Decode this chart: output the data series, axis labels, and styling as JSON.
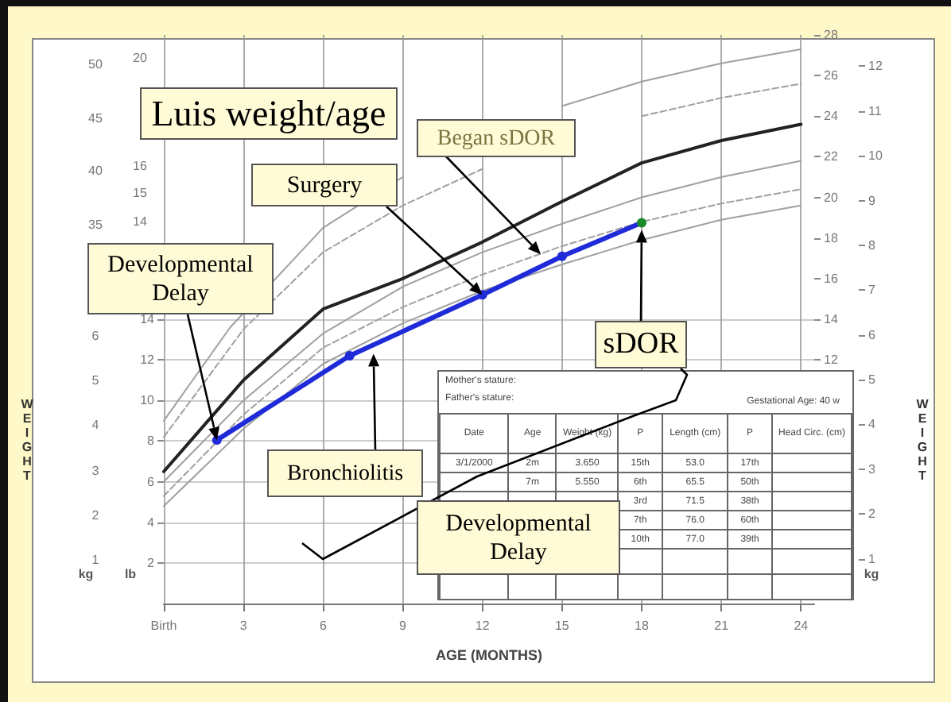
{
  "chart_data": {
    "type": "line",
    "title": "Luis weight/age",
    "xlabel": "AGE (MONTHS)",
    "x": [
      0,
      3,
      6,
      9,
      12,
      15,
      18,
      21,
      24
    ],
    "series": [
      {
        "color": "#a0a0a0",
        "marker": "none",
        "line_style": "solid",
        "x": [
          0,
          2.5,
          6,
          9,
          12,
          15,
          18,
          21,
          24
        ],
        "values": [
          9,
          13.6,
          18.5,
          21,
          null,
          24.5,
          25.7,
          26.6,
          27.3
        ]
      },
      {
        "color": "#a0a0a0",
        "marker": "none",
        "line_style": "dashed",
        "values": [
          8.2,
          13.5,
          17.3,
          19.6,
          21.4,
          null,
          24,
          24.9,
          25.6
        ]
      },
      {
        "color": "#222222",
        "marker": "none",
        "line_style": "solid",
        "values": [
          6.5,
          11,
          14.5,
          16,
          17.8,
          19.8,
          21.7,
          22.8,
          23.6
        ]
      },
      {
        "color": "#a0a0a0",
        "marker": "none",
        "line_style": "solid",
        "values": [
          6,
          10,
          13.3,
          15.6,
          17.3,
          18.7,
          20,
          21,
          21.8
        ]
      },
      {
        "color": "#a0a0a0",
        "marker": "none",
        "line_style": "dashed",
        "values": [
          5.3,
          9.3,
          12.6,
          14.6,
          16.2,
          17.6,
          18.8,
          19.7,
          20.4
        ]
      },
      {
        "color": "#a0a0a0",
        "marker": "none",
        "line_style": "solid",
        "values": [
          4.8,
          8.6,
          11.8,
          13.8,
          15.4,
          16.7,
          17.9,
          18.9,
          19.6
        ]
      },
      {
        "color": "#1f2bd8",
        "marker": "circle",
        "line_style": "solid",
        "x": [
          2,
          7,
          12,
          15,
          18
        ],
        "values": [
          8.05,
          12.2,
          15.2,
          17.1,
          18.75
        ],
        "colors": [
          "#1f2bd8",
          "#1f2bd8",
          "#1f2bd8",
          "#1f2bd8",
          "#1a8a2a"
        ]
      }
    ],
    "xlim": [
      0,
      24.5
    ],
    "xticks": [
      {
        "value": 0,
        "label": "Birth"
      },
      3,
      6,
      9,
      12,
      15,
      18,
      21,
      24
    ],
    "ylim": [
      0,
      28
    ],
    "yticks": [
      2,
      4,
      6,
      8,
      10,
      12,
      14
    ],
    "y2lim": [
      0,
      12.7
    ],
    "y2ticks": [
      1,
      2,
      3,
      4,
      5,
      6,
      7,
      8,
      9,
      10,
      11,
      12
    ],
    "y3lim": [
      0,
      28
    ],
    "y3ticks": [
      12,
      14,
      16,
      18,
      20,
      22,
      24,
      26,
      28
    ],
    "grid": true,
    "annotations": [
      {
        "text": "Developmental Delay",
        "x": 2,
        "y": 8.05
      },
      {
        "text": "Bronchiolitis",
        "x": 7.9,
        "y": 12.3
      },
      {
        "text": "Surgery",
        "x": 12,
        "y": 15.2
      },
      {
        "text": "Began sDOR",
        "x": 14.2,
        "y": 17.2
      },
      {
        "text": "sDOR",
        "x": 18,
        "y": 18.4
      },
      "Developmental Delay",
      "WEIGHT",
      "WEIGHT",
      "kg",
      "lb",
      "kg",
      "1",
      "2",
      "3",
      "4",
      "5",
      "6",
      "35",
      "40",
      "45",
      "50",
      "14",
      "15",
      "16",
      "20",
      "Mother's stature:",
      "Father's stature:",
      "Gestational Age: 40 w",
      "Date",
      "Age",
      "Weight (kg)",
      "P",
      "Length (cm)",
      "P",
      "Head Circ. (cm)",
      "3/1/2000",
      "2m",
      "3.650",
      "15th",
      "53.0",
      "17th",
      "7m",
      "5.550",
      "6th",
      "65.5",
      "50th",
      "3rd",
      "71.5",
      "38th",
      "7th",
      "76.0",
      "60th",
      "10th",
      "77.0",
      "39th"
    ]
  }
}
